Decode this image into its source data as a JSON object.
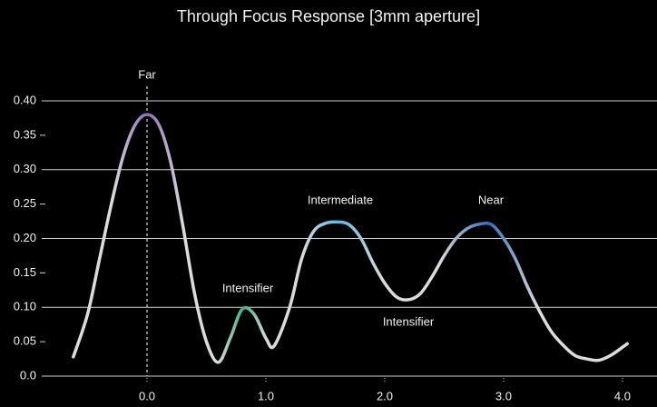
{
  "chart_data": {
    "type": "line",
    "title": "Through Focus Response [3mm aperture]",
    "x": [
      -0.62,
      -0.5,
      -0.4,
      -0.3,
      -0.2,
      -0.1,
      0.0,
      0.1,
      0.2,
      0.3,
      0.4,
      0.5,
      0.6,
      0.7,
      0.8,
      0.9,
      1.0,
      1.07,
      1.2,
      1.3,
      1.4,
      1.5,
      1.6,
      1.7,
      1.8,
      1.9,
      2.0,
      2.1,
      2.2,
      2.3,
      2.4,
      2.5,
      2.6,
      2.7,
      2.8,
      2.9,
      3.0,
      3.1,
      3.2,
      3.3,
      3.4,
      3.5,
      3.6,
      3.7,
      3.8,
      3.9,
      4.0,
      4.04
    ],
    "series": [
      {
        "color": "#dcdcdc",
        "values": [
          0.028,
          0.09,
          0.17,
          0.25,
          0.32,
          0.365,
          0.38,
          0.365,
          0.31,
          0.22,
          0.12,
          0.05,
          0.02,
          0.055,
          0.097,
          0.09,
          0.055,
          0.044,
          0.1,
          0.17,
          0.21,
          0.222,
          0.224,
          0.22,
          0.2,
          0.165,
          0.135,
          0.115,
          0.111,
          0.12,
          0.145,
          0.175,
          0.2,
          0.215,
          0.221,
          0.22,
          0.2,
          0.17,
          0.13,
          0.095,
          0.065,
          0.045,
          0.03,
          0.025,
          0.023,
          0.03,
          0.042,
          0.047
        ]
      }
    ],
    "annotations": [
      "Far",
      "Intensifier",
      "Intermediate",
      "Near",
      "Intensifier"
    ],
    "xlim": [
      -0.62,
      4.04
    ],
    "ylim": [
      0,
      0.4
    ],
    "xticks": [
      {
        "value": 0,
        "label": "0.0"
      },
      {
        "value": 1,
        "label": "1.0"
      },
      {
        "value": 2,
        "label": "2.0"
      },
      {
        "value": 3,
        "label": "3.0"
      },
      {
        "value": 4,
        "label": "4.0"
      }
    ],
    "yticks": [
      {
        "value": 0,
        "label": "0.0"
      },
      0.05,
      {
        "value": 0.1,
        "label": "0.10"
      },
      0.15,
      {
        "value": 0.2,
        "label": "0.20"
      },
      0.25,
      {
        "value": 0.3,
        "label": "0.30"
      },
      0.35,
      {
        "value": 0.4,
        "label": "0.40"
      }
    ],
    "grid": true
  }
}
